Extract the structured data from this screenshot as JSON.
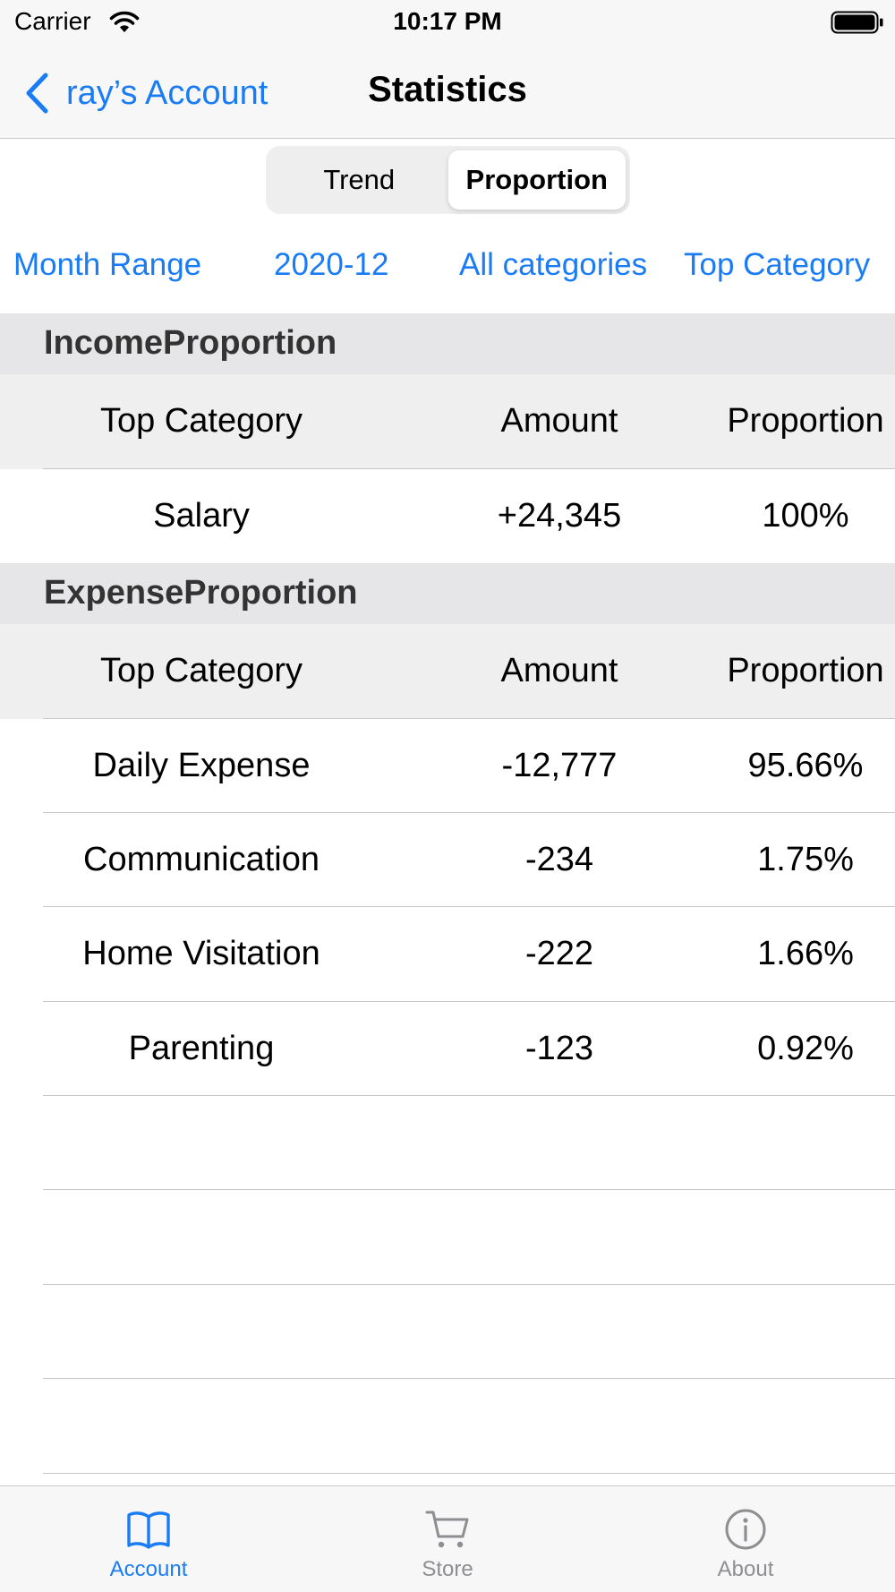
{
  "status_bar": {
    "carrier": "Carrier",
    "time": "10:17 PM"
  },
  "nav": {
    "back_label": "ray’s Account",
    "title": "Statistics"
  },
  "segmented": {
    "options": [
      "Trend",
      "Proportion"
    ],
    "selected": "Proportion"
  },
  "filters": {
    "month_range": "Month Range",
    "month": "2020-12",
    "categories": "All categories",
    "level": "Top Category"
  },
  "income": {
    "title": "IncomeProportion",
    "columns": [
      "Top Category",
      "Amount",
      "Proportion"
    ],
    "rows": [
      [
        "Salary",
        "+24,345",
        "100%"
      ]
    ]
  },
  "expense": {
    "title": "ExpenseProportion",
    "columns": [
      "Top Category",
      "Amount",
      "Proportion"
    ],
    "rows": [
      [
        "Daily Expense",
        "-12,777",
        "95.66%"
      ],
      [
        "Communication",
        "-234",
        "1.75%"
      ],
      [
        "Home Visitation",
        "-222",
        "1.66%"
      ],
      [
        "Parenting",
        "-123",
        "0.92%"
      ]
    ]
  },
  "tabs": [
    {
      "label": "Account",
      "icon": "book-icon",
      "active": true
    },
    {
      "label": "Store",
      "icon": "cart-icon",
      "active": false
    },
    {
      "label": "About",
      "icon": "info-icon",
      "active": false
    }
  ],
  "colors": {
    "accent": "#1a7cf5",
    "tab_inactive": "#8e8e93"
  }
}
